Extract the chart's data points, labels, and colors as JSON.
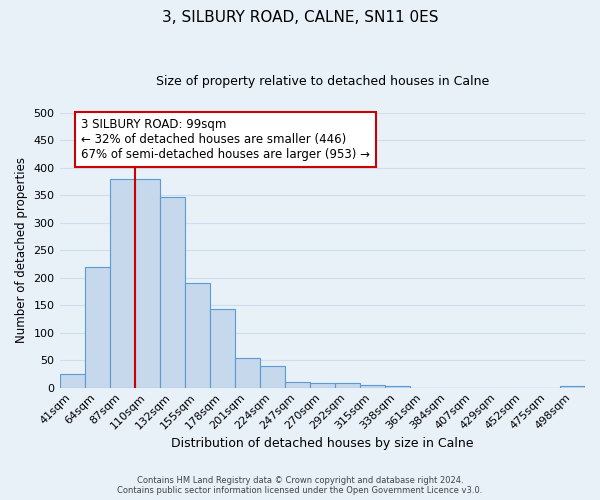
{
  "title": "3, SILBURY ROAD, CALNE, SN11 0ES",
  "subtitle": "Size of property relative to detached houses in Calne",
  "xlabel": "Distribution of detached houses by size in Calne",
  "ylabel": "Number of detached properties",
  "bar_labels": [
    "41sqm",
    "64sqm",
    "87sqm",
    "110sqm",
    "132sqm",
    "155sqm",
    "178sqm",
    "201sqm",
    "224sqm",
    "247sqm",
    "270sqm",
    "292sqm",
    "315sqm",
    "338sqm",
    "361sqm",
    "384sqm",
    "407sqm",
    "429sqm",
    "452sqm",
    "475sqm",
    "498sqm"
  ],
  "bar_values": [
    25,
    220,
    380,
    380,
    347,
    190,
    143,
    53,
    40,
    11,
    8,
    8,
    5,
    3,
    0,
    0,
    0,
    0,
    0,
    0,
    3
  ],
  "bar_color": "#c5d8ec",
  "bar_edge_color": "#5b9bd5",
  "vline_x_index": 2,
  "vline_color": "#cc0000",
  "annotation_text": "3 SILBURY ROAD: 99sqm\n← 32% of detached houses are smaller (446)\n67% of semi-detached houses are larger (953) →",
  "annotation_box_color": "#ffffff",
  "annotation_box_edge_color": "#cc0000",
  "ylim": [
    0,
    500
  ],
  "yticks": [
    0,
    50,
    100,
    150,
    200,
    250,
    300,
    350,
    400,
    450,
    500
  ],
  "grid_color": "#cfdded",
  "background_color": "#e8f0f8",
  "footer_line1": "Contains HM Land Registry data © Crown copyright and database right 2024.",
  "footer_line2": "Contains public sector information licensed under the Open Government Licence v3.0."
}
